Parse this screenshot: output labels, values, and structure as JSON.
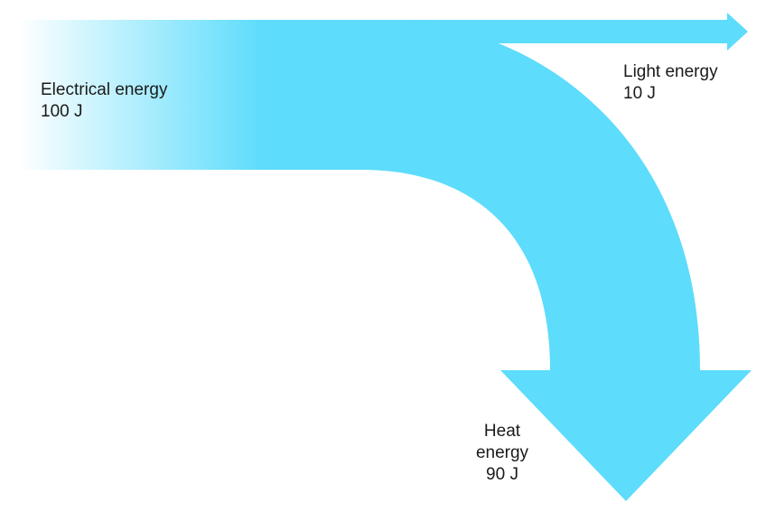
{
  "diagram": {
    "type": "sankey-energy-transfer",
    "colors": {
      "flow": "#5ddcfc",
      "gradient_start": "#ffffff",
      "text": "#1a1a1a",
      "background": "#ffffff"
    },
    "input": {
      "name": "Electrical energy",
      "value_text": "100 J",
      "value": 100
    },
    "outputs": [
      {
        "name": "Light energy",
        "value_text": "10 J",
        "value": 10,
        "direction": "right"
      },
      {
        "name_line1": "Heat",
        "name_line2": "energy",
        "value_text": "90 J",
        "value": 90,
        "direction": "down"
      }
    ]
  }
}
